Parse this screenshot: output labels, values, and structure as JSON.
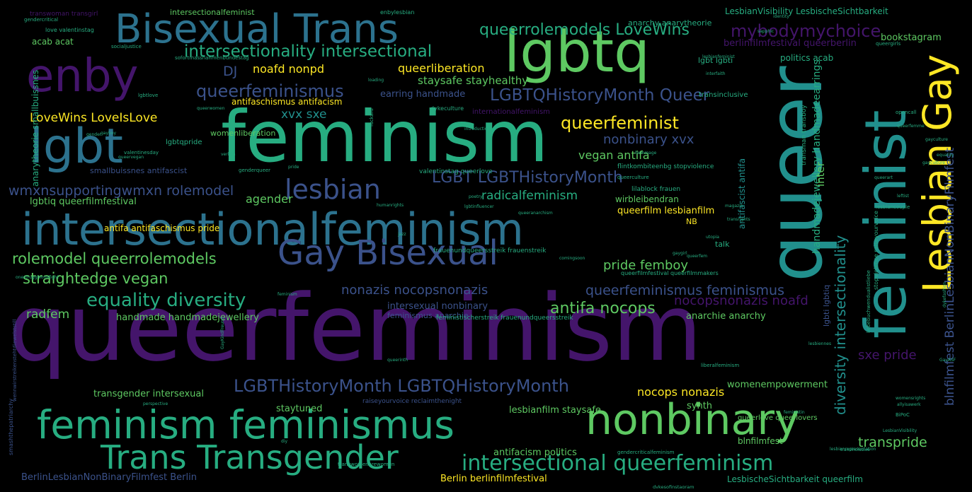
{
  "palette": {
    "purple": "#44156b",
    "blue": "#3b528b",
    "teal": "#2c728e",
    "cyan": "#21908d",
    "green": "#27ad81",
    "lime": "#5ec962",
    "yellow": "#fde725",
    "background": "#000000"
  },
  "words": {
    "queerfeminism": "queerfeminism",
    "feminism": "feminism",
    "queer": "queer",
    "intersectionalfeminism": "intersectionalfeminism",
    "feminist": "feminist",
    "lgbtq": "lgbtq",
    "bisexual_trans": "Bisexual Trans",
    "enby": "enby",
    "lgbt": "lgbt",
    "nonbinary": "nonbinary",
    "feminism_feminismus": "feminism feminismus",
    "gay_bisexual": "Gay Bisexual",
    "lesbian_gay": "Lesbian Gay",
    "trans_transgender": "Trans Transgender",
    "lesbian": "lesbian",
    "intersectional_queerfeminism": "intersectional queerfeminism",
    "lgbthm_lgbtqhm": "LGBTHistoryMonth LGBTQHistoryMonth",
    "intersectionality_intersectional": "intersectionality intersectional",
    "queerrolemodels_lovewins": "queerrolemodels LoveWins",
    "mybodymychoice": "mybodymychoice",
    "queerfeminismus": "queerfeminismus",
    "lgbtqhm_queer": "LGBTQHistoryMonth Queer",
    "queerfeminist": "queerfeminist",
    "lgbt_lgbthm": "LGBT LGBTHistoryMonth",
    "wmxn_rolemodel": "wmxnsupportingwmxn rolemodel",
    "rolemodel_queerrolemodels": "rolemodel queerrolemodels",
    "straightedge_vegan": "straightedge vegan",
    "equality_diversity": "equality diversity",
    "queerfeminismus_feminismus": "queerfeminismus feminismus",
    "nonazis_nocopsnonazis": "nonazis nocopsnonazis",
    "antifa_nocops": "antifa nocops",
    "nocopsnonazis_noafd": "nocopsnonazis noafd",
    "diversity_intersectionality": "diversity intersectionality",
    "blnfilmfest_berlinlesbian": "blnfilmfest BerlinLesbianNonBinaryFilmfest",
    "handmadejewellery_earrings": "handmadejewellery handmadeearrings",
    "sxe_pride": "sxe pride",
    "transpride": "transpride",
    "lovewins_loveislove": "LoveWins LoveIsLove",
    "xvx_sxe": "xvx sxe",
    "nonbinary_xvx": "nonbinary xvx",
    "vegan_antifa": "vegan antifa",
    "radicalfeminism": "radicalfeminism",
    "noafd_nonpd": "noafd nonpd",
    "dj": "DJ",
    "queerliberation": "queerliberation",
    "staysafe_stayhealthy": "staysafe stayhealthy",
    "earring_handmade": "earring handmade",
    "agender": "agender",
    "pride_femboy": "pride femboy",
    "queerfilm_lesbianfilm": "queerfilm lesbianfilm",
    "wirbleibendran": "wirbleibendran",
    "nb": "NB",
    "inter": "inter",
    "antifascist_antifa": "antifascist antifa",
    "radfem": "radfem",
    "handmade_handmadejewellery": "handmade handmadejewellery",
    "intersexual_nonbinary": "intersexual nonbinary",
    "feminismus_anarchie": "feminismus anarchie",
    "anarchie_anarchy": "anarchie anarchy",
    "transgender_intersexual": "transgender intersexual",
    "nocops_nonazis": "nocops nonazis",
    "womenempowerment": "womenempowerment",
    "staytuned": "staytuned",
    "lesbianfilm_staysafe": "lesbianfilm staysafe",
    "synth": "synth",
    "blnfilmfest": "blnfilmfest",
    "antifacism_politics": "antifacism politics",
    "queerlove_queerlovers": "queerlove queerlovers",
    "berlinlesbian_berlin": "BerlinLesbianNonBinaryFilmfest Berlin",
    "berlin_berlinfilmfestival": "Berlin berlinfilmfestival",
    "lesbischesichtbarkeit_queerfilm": "LesbischeSichtbarkeit queerfilm",
    "lesbianvisibility_lesbischesichtbarkeit": "LesbianVisibility LesbischeSichtbarkeit",
    "anarchy_anarytheorie": "anarchy anarytheorie",
    "bookstagram": "bookstagram",
    "berlinfilmfestival_queerberlin": "berlinfilmfestival queerberlin",
    "politics_acab": "politics acab",
    "lgbt_lgbti": "lgbt lgbti",
    "transinclusive": "transinclusive",
    "intersectionalfeminist": "intersectionalfeminist",
    "acab_acat": "acab acat",
    "anarytheorie_smallbuissnes": "anarytheorie smallbuissnes",
    "antifaschismus_antifacism": "antifaschismus antifacism",
    "womenliberation": "womenliberation",
    "smallbuissnes_antifascist": "smallbuissnes antifascist",
    "lgbtiq_queerfilmfestival": "lgbtiq queerfilmfestival",
    "antifa_antifaschismus_pride": "antifa antifaschismus pride",
    "lgbtqpride": "lgbtqpride",
    "talk": "talk",
    "lgbti_lgbtiq": "lgbti lgbtiq",
    "internationalfeminism": "internationalfeminism",
    "transgender_transgirl": "transwoman transgirl",
    "enbylesbian": "enbylesbian",
    "love_valentinstag": "love valentinstag",
    "socialjustice": "socialjustice",
    "gendercritical": "gendercritical",
    "sapphic": "sapphic",
    "identity": "identity",
    "queergirls": "queergirls",
    "lesbianfeminist": "lesbianfeminist",
    "interfaith": "interfaith",
    "transman_transboy": "transman transboy",
    "dykeculture": "dykeculture",
    "fuckafd": "fuckafd",
    "opencall": "opencall",
    "lgbtlove": "lgbtlove",
    "valentinsday": "valentinesday",
    "valentinstag_queerlove": "valentinstag queerlove",
    "genderqueer": "genderqueer",
    "flintkombitee_stopviolence": "flintkombiteenbg stopviolence",
    "lilablock_frauen": "lilablock frauen",
    "queerculture": "queerculture",
    "poetry": "poetry",
    "lgbtinfluencer": "lgbtinfluencer",
    "humanrights": "humanrights",
    "queeranarchism": "queeranarchism",
    "magazin": "magazin",
    "lesbiancouple": "lesbiancouple",
    "transrights": "transrights",
    "utopia": "utopia",
    "frauenundqueersstreik": "frauenundqueersstreik frauenstreik",
    "queerfilmfestival_queerfilmmakers": "queerfilmfestival queerfilmmakers",
    "comingsoon": "comingsoon",
    "gaygirl": "gaygirl",
    "feministischerstreik": "feministischerstreik frauenundqueersstreik",
    "stopviolence_raiseyourvoice": "stopviolence raiseyourvoice",
    "liebebuchwendualistliebe": "liebebuchwendualistliebe",
    "dykefashion": "dykefashion",
    "smashthepatriarchy": "smashthepatriarchy",
    "wennwirstreiken": "wennwirstreikenstehtdiewelststill",
    "onestruggleonefight": "onestruggleonefight",
    "lesbiennes": "lesbiennes",
    "liberalfeminism": "liberalfeminism",
    "queerinth": "queerinth",
    "raiseyourvoice_reclaimthenight": "raiseyourvoice reclaimthenight",
    "transwomenarewomen": "transwomenarewomen",
    "gendercriticalfeminism": "gendercriticalfeminism",
    "lesbianrepresentation": "lesbianrepresentation",
    "transinclusive2": "transinclusive",
    "dykesofinstagram": "dykesofinstagram",
    "womensrights": "womensrights",
    "bipoc": "BiPoC",
    "allyisawerk": "allyisawerk",
    "feministin": "feministin",
    "lesbianvisibility2": "LesbianVisibility",
    "gayasf": "GayASF",
    "gayboy": "gayboy",
    "perspective": "perspective",
    "gaykindfreund": "GayKindFreund",
    "diy": "diy",
    "queerfemme": "queerfemme",
    "leftist": "leftist",
    "queerart": "queerart",
    "loading": "loading",
    "gayculture": "gayculture",
    "sofortmassnahmen": "sofortmassnahmenbundestag",
    "gayculture2": "gayculture",
    "queerwomen": "queerwomen",
    "equality2": "equality",
    "hommage": "hommage",
    "queeregan": "queervegan",
    "gender": "gender",
    "introduction": "introduction",
    "verleih": "verleih",
    "queerfem": "queerfem",
    "feminism_small": "feminism",
    "pride2": "pride",
    "jazz": "jazz"
  }
}
